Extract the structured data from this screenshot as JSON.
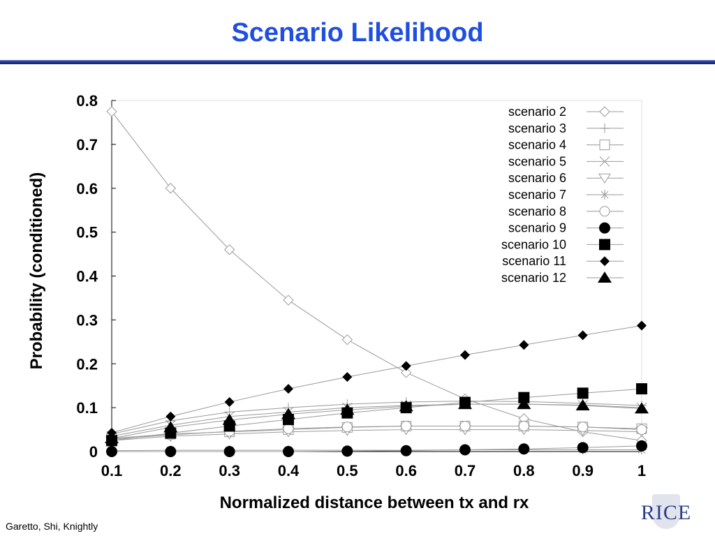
{
  "slide": {
    "title": "Scenario Likelihood",
    "credit": "Garetto, Shi, Knightly",
    "logo_text": "RICE"
  },
  "chart_data": {
    "type": "line",
    "title": "",
    "xlabel": "Normalized distance between tx and rx",
    "ylabel": "Probability (conditioned)",
    "x": [
      0.1,
      0.2,
      0.3,
      0.4,
      0.5,
      0.6,
      0.7,
      0.8,
      0.9,
      1
    ],
    "x_tick_labels": [
      "0.1",
      "0.2",
      "0.3",
      "0.4",
      "0.5",
      "0.6",
      "0.7",
      "0.8",
      "0.9",
      "1"
    ],
    "y_tick_values": [
      0,
      0.1,
      0.2,
      0.3,
      0.4,
      0.5,
      0.6,
      0.7,
      0.8
    ],
    "y_tick_labels": [
      "0",
      "0.1",
      "0.2",
      "0.3",
      "0.4",
      "0.5",
      "0.6",
      "0.7",
      "0.8"
    ],
    "xlim": [
      0.1,
      1
    ],
    "ylim": [
      0,
      0.8
    ],
    "grid": false,
    "legend_position": "top-right",
    "line_color": "#999999",
    "series": [
      {
        "name": "scenario 2",
        "marker": "diamond-open",
        "values": [
          0.775,
          0.6,
          0.46,
          0.345,
          0.255,
          0.18,
          0.12,
          0.075,
          0.045,
          0.025
        ]
      },
      {
        "name": "scenario 3",
        "marker": "plus",
        "values": [
          0.04,
          0.07,
          0.09,
          0.1,
          0.108,
          0.113,
          0.115,
          0.114,
          0.11,
          0.105
        ]
      },
      {
        "name": "scenario 4",
        "marker": "square-open",
        "values": [
          0.03,
          0.04,
          0.045,
          0.05,
          0.055,
          0.058,
          0.058,
          0.058,
          0.056,
          0.052
        ]
      },
      {
        "name": "scenario 5",
        "marker": "x",
        "values": [
          0.035,
          0.06,
          0.08,
          0.09,
          0.1,
          0.105,
          0.108,
          0.108,
          0.106,
          0.1
        ]
      },
      {
        "name": "scenario 6",
        "marker": "triangle-down-open",
        "values": [
          0.025,
          0.035,
          0.04,
          0.045,
          0.048,
          0.05,
          0.05,
          0.05,
          0.048,
          0.045
        ]
      },
      {
        "name": "scenario 7",
        "marker": "asterisk",
        "values": [
          0.002,
          0.003,
          0.003,
          0.003,
          0.003,
          0.003,
          0.004,
          0.004,
          0.004,
          0.004
        ]
      },
      {
        "name": "scenario 8",
        "marker": "circle-open",
        "values": [
          0.028,
          0.038,
          0.046,
          0.052,
          0.056,
          0.058,
          0.058,
          0.058,
          0.056,
          0.05
        ]
      },
      {
        "name": "scenario 9",
        "marker": "circle-filled",
        "values": [
          0.0,
          0.0,
          0.0,
          0.0,
          0.001,
          0.002,
          0.004,
          0.006,
          0.009,
          0.013
        ]
      },
      {
        "name": "scenario 10",
        "marker": "square-filled",
        "values": [
          0.025,
          0.042,
          0.058,
          0.073,
          0.088,
          0.1,
          0.112,
          0.123,
          0.133,
          0.143
        ]
      },
      {
        "name": "scenario 11",
        "marker": "diamond-filled",
        "values": [
          0.043,
          0.08,
          0.113,
          0.143,
          0.17,
          0.195,
          0.22,
          0.243,
          0.265,
          0.287
        ]
      },
      {
        "name": "scenario 12",
        "marker": "triangle-up-filled",
        "values": [
          0.03,
          0.055,
          0.072,
          0.085,
          0.095,
          0.103,
          0.108,
          0.108,
          0.105,
          0.098
        ]
      }
    ]
  }
}
